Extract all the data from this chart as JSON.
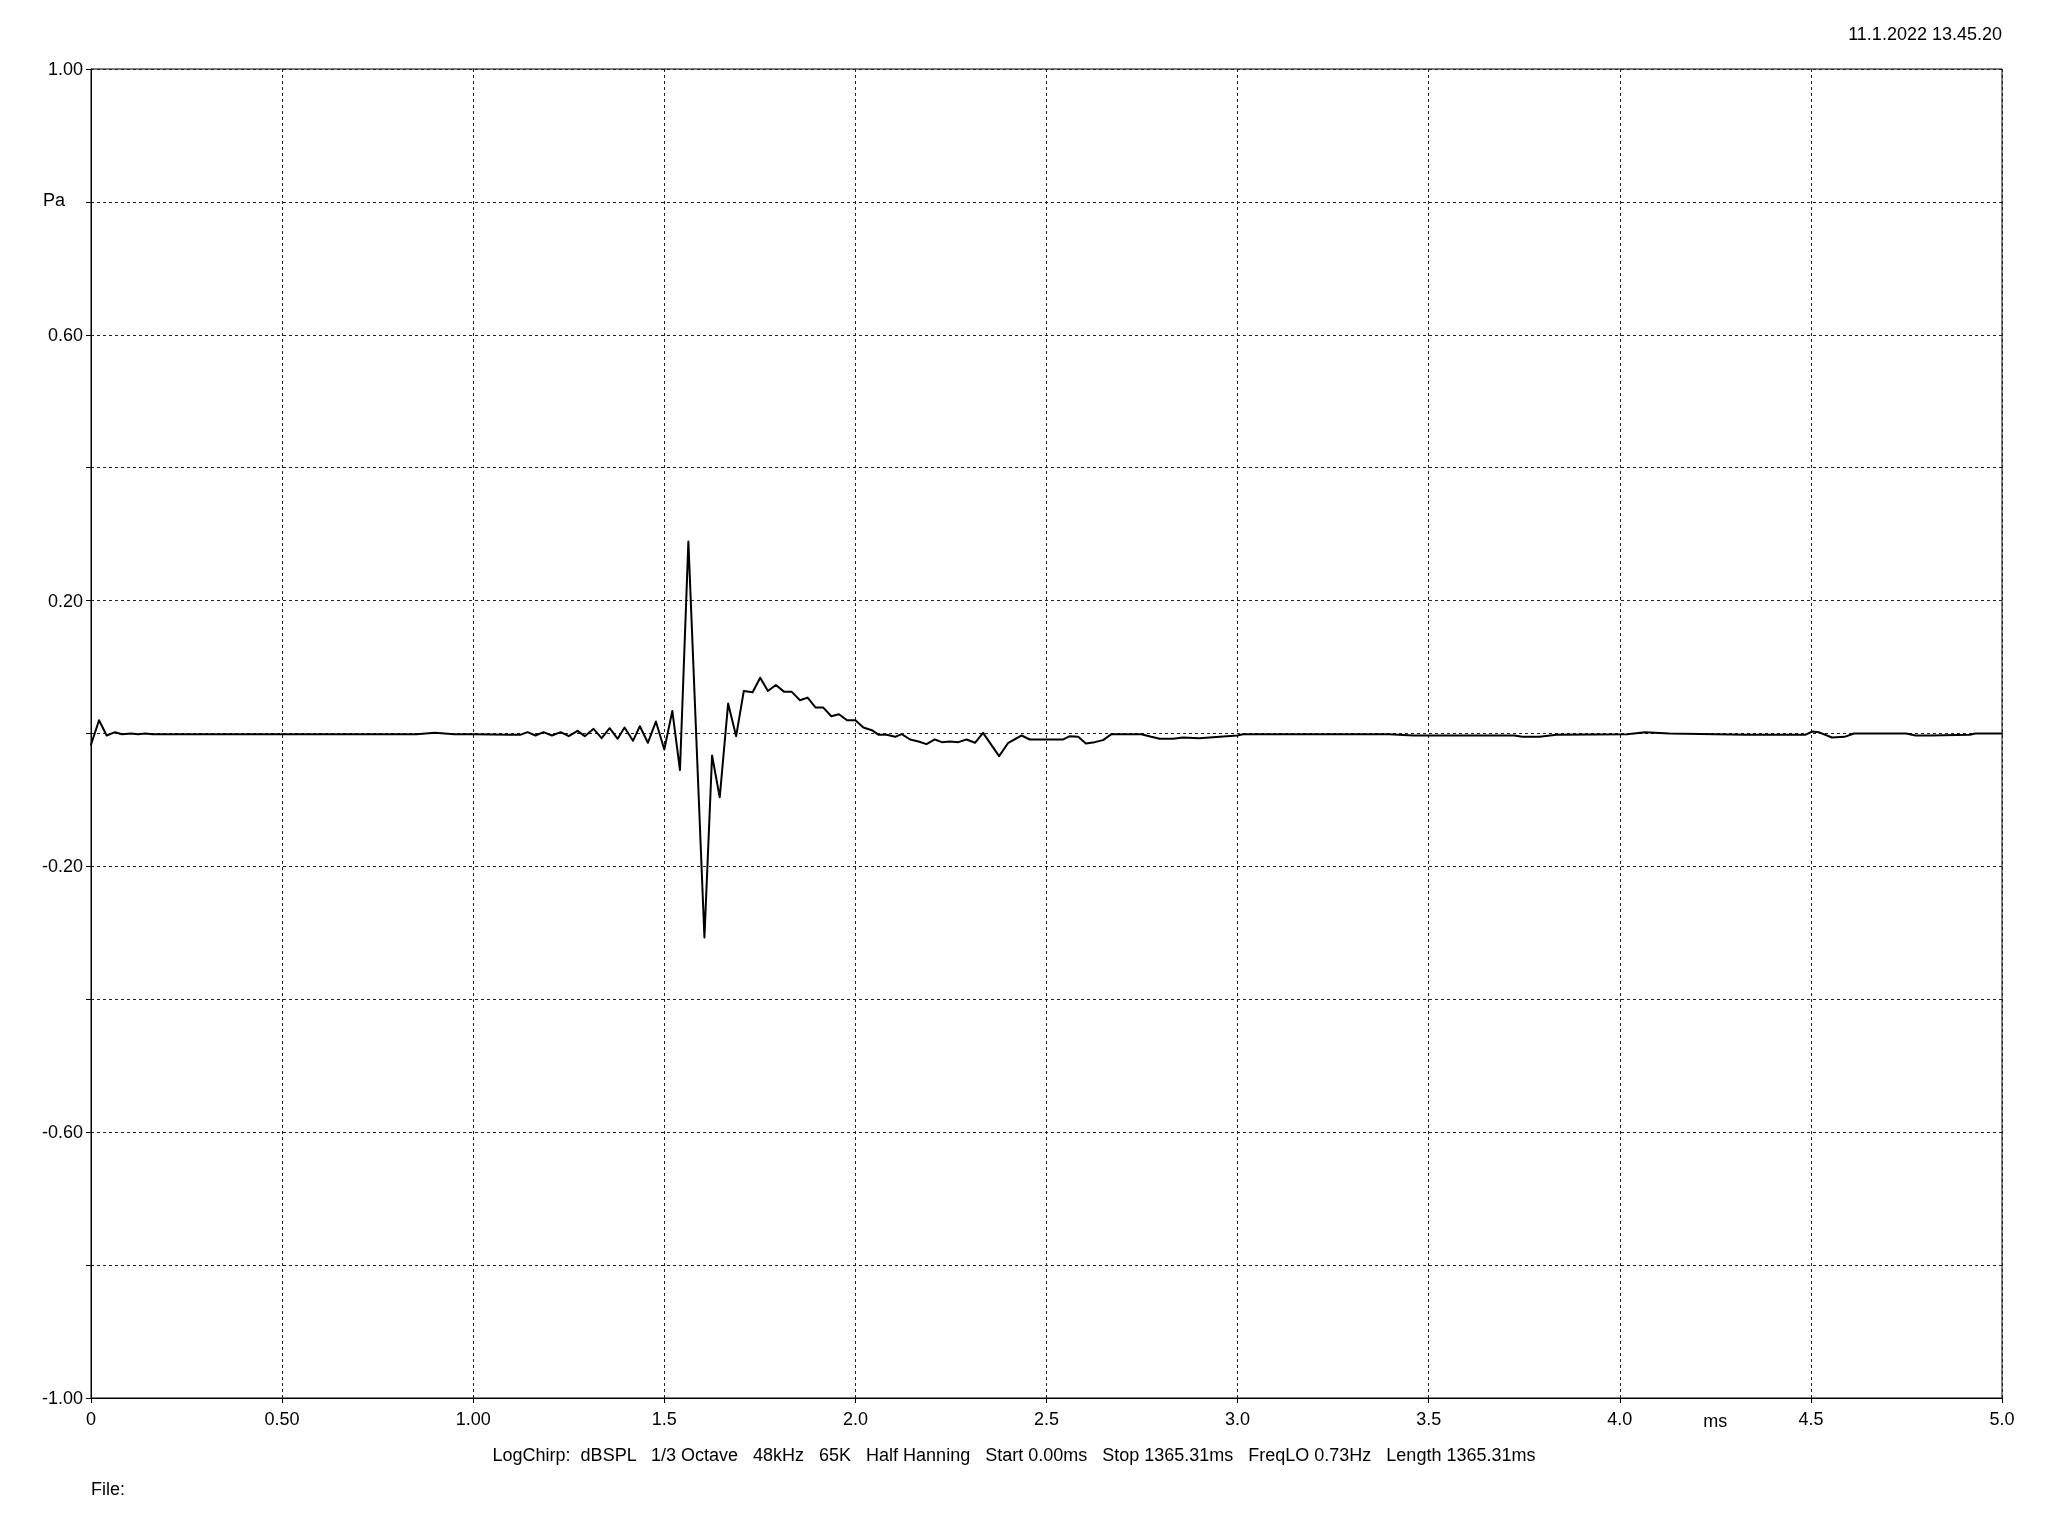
{
  "chart_data": {
    "type": "line",
    "xlabel": "ms",
    "ylabel": "Pa",
    "annotations": [
      "11.1.2022 13.45.20",
      "LogChirp:  dBSPL   1/3 Octave   48kHz   65K   Half Hanning   Start 0.00ms   Stop 1365.31ms   FreqLO 0.73Hz   Length 1365.31ms",
      "File:"
    ],
    "x": [
      0,
      0.021,
      0.041,
      0.063,
      0.081,
      0.105,
      0.123,
      0.142,
      0.161,
      0.852,
      0.9,
      0.95,
      1.0,
      1.123,
      1.142,
      1.163,
      1.184,
      1.206,
      1.229,
      1.25,
      1.273,
      1.292,
      1.315,
      1.336,
      1.357,
      1.378,
      1.396,
      1.418,
      1.436,
      1.457,
      1.478,
      1.5,
      1.521,
      1.541,
      1.563,
      1.584,
      1.605,
      1.625,
      1.645,
      1.667,
      1.688,
      1.708,
      1.731,
      1.751,
      1.771,
      1.792,
      1.813,
      1.833,
      1.855,
      1.875,
      1.896,
      1.916,
      1.937,
      1.957,
      1.978,
      2.0,
      2.021,
      2.043,
      2.061,
      2.082,
      2.104,
      2.121,
      2.143,
      2.165,
      2.186,
      2.208,
      2.226,
      2.247,
      2.269,
      2.291,
      2.313,
      2.334,
      2.376,
      2.4,
      2.435,
      2.456,
      2.544,
      2.561,
      2.583,
      2.603,
      2.626,
      2.648,
      2.67,
      2.748,
      2.774,
      2.796,
      2.831,
      2.857,
      2.9,
      2.953,
      3.0,
      3.014,
      3.396,
      3.46,
      3.724,
      3.745,
      3.79,
      3.834,
      4.02,
      4.066,
      4.13,
      4.33,
      4.485,
      4.504,
      4.52,
      4.555,
      4.588,
      4.613,
      4.749,
      4.774,
      4.813,
      4.916,
      4.93,
      5.0
    ],
    "values": [
      -0.017,
      0.02,
      -0.003,
      0.002,
      -0.001,
      0,
      -0.001,
      0,
      -0.001,
      -0.001,
      0.001,
      -0.001,
      -0.001,
      -0.002,
      0.002,
      -0.003,
      0.002,
      -0.003,
      0.002,
      -0.004,
      0.004,
      -0.004,
      0.007,
      -0.007,
      0.008,
      -0.008,
      0.009,
      -0.011,
      0.011,
      -0.014,
      0.018,
      -0.024,
      0.034,
      -0.055,
      0.289,
      -0.01,
      -0.307,
      -0.033,
      -0.096,
      0.045,
      -0.004,
      0.064,
      0.062,
      0.084,
      0.064,
      0.073,
      0.063,
      0.063,
      0.05,
      0.054,
      0.039,
      0.039,
      0.026,
      0.029,
      0.02,
      0.02,
      0.009,
      0.005,
      -0.002,
      -0.002,
      -0.005,
      -0.001,
      -0.009,
      -0.012,
      -0.016,
      -0.009,
      -0.013,
      -0.012,
      -0.013,
      -0.009,
      -0.014,
      0.001,
      -0.034,
      -0.014,
      -0.003,
      -0.009,
      -0.009,
      -0.004,
      -0.005,
      -0.015,
      -0.013,
      -0.01,
      -0.001,
      -0.001,
      -0.005,
      -0.008,
      -0.008,
      -0.006,
      -0.007,
      -0.005,
      -0.003,
      -0.001,
      -0.001,
      -0.003,
      -0.003,
      -0.005,
      -0.005,
      -0.002,
      -0.001,
      0.002,
      0,
      -0.002,
      -0.002,
      0.003,
      0.002,
      -0.006,
      -0.005,
      0,
      0,
      -0.003,
      -0.003,
      -0.002,
      0,
      0
    ],
    "color": "#000000",
    "xlim": [
      0,
      5
    ],
    "ylim": [
      -1,
      1
    ],
    "xticks": [
      0,
      {
        "value": 0.5,
        "label": "0.50"
      },
      {
        "value": 1,
        "label": "1.00"
      },
      1.5,
      {
        "value": 2,
        "label": "2.0"
      },
      2.5,
      {
        "value": 3,
        "label": "3.0"
      },
      3.5,
      {
        "value": 4,
        "label": "4.0"
      },
      4.5,
      {
        "value": 5,
        "label": "5.0"
      }
    ],
    "yticks": [
      {
        "value": -1,
        "label": "-1.00"
      },
      {
        "value": -0.8,
        "label": null
      },
      {
        "value": -0.6,
        "label": "-0.60"
      },
      {
        "value": -0.4,
        "label": null
      },
      {
        "value": -0.2,
        "label": "-0.20"
      },
      {
        "value": 0,
        "label": null
      },
      {
        "value": 0.2,
        "label": "0.20"
      },
      {
        "value": 0.4,
        "label": null
      },
      {
        "value": 0.6,
        "label": "0.60"
      },
      {
        "value": 0.8,
        "label": null
      },
      {
        "value": 1,
        "label": "1.00"
      }
    ],
    "grid": true
  }
}
